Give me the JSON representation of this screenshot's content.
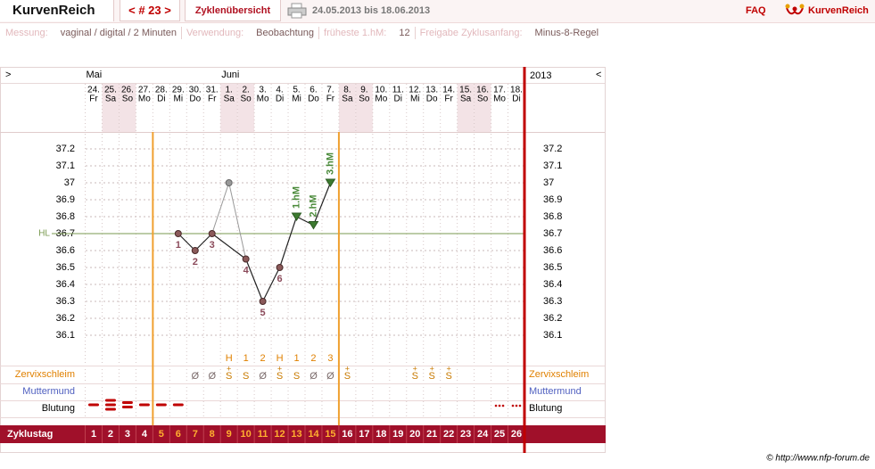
{
  "header": {
    "brand": "KurvenReich",
    "nav": "< # 23 >",
    "overview": "Zyklenübersicht",
    "range": "24.05.2013 bis 18.06.2013",
    "faq": "FAQ",
    "logo": "KurvenReich"
  },
  "info": [
    {
      "label": "Messung:",
      "value": "vaginal / digital / 2 Minuten"
    },
    {
      "label": "Verwendung:",
      "value": "Beobachtung"
    },
    {
      "label": "früheste 1.hM:",
      "value": "12"
    },
    {
      "label": "Freigabe Zyklusanfang:",
      "value": "Minus-8-Regel"
    }
  ],
  "footer": "© http://www.nfp-forum.de",
  "chart_data": {
    "type": "nfp-cycle",
    "toggle_left": ">",
    "toggle_right": "<",
    "year": "2013",
    "month_labels": [
      "Mai",
      null,
      null,
      null,
      null,
      null,
      null,
      null,
      "Juni",
      null,
      null,
      null,
      null,
      null,
      null,
      null,
      null,
      null,
      null,
      null,
      null,
      null,
      null,
      null,
      null,
      null
    ],
    "dates": [
      "24.",
      "25.",
      "26.",
      "27.",
      "28.",
      "29.",
      "30.",
      "31.",
      "1.",
      "2.",
      "3.",
      "4.",
      "5.",
      "6.",
      "7.",
      "8.",
      "9.",
      "10.",
      "11.",
      "12.",
      "13.",
      "14.",
      "15.",
      "16.",
      "17.",
      "18."
    ],
    "weekdays": [
      "Fr",
      "Sa",
      "So",
      "Mo",
      "Di",
      "Mi",
      "Do",
      "Fr",
      "Sa",
      "So",
      "Mo",
      "Di",
      "Mi",
      "Do",
      "Fr",
      "Sa",
      "So",
      "Mo",
      "Di",
      "Mi",
      "Do",
      "Fr",
      "Sa",
      "So",
      "Mo",
      "Di"
    ],
    "cycle_days": [
      1,
      2,
      3,
      4,
      5,
      6,
      7,
      8,
      9,
      10,
      11,
      12,
      13,
      14,
      15,
      16,
      17,
      18,
      19,
      20,
      21,
      22,
      23,
      24,
      25,
      26
    ],
    "fertile_window": [
      5,
      15
    ],
    "ylim": [
      36.0,
      37.3
    ],
    "yticks": [
      36.1,
      36.2,
      36.3,
      36.4,
      36.5,
      36.6,
      36.7,
      36.8,
      36.9,
      37,
      37.1,
      37.2
    ],
    "grid": true,
    "hl": {
      "label": "HL",
      "value": 36.7,
      "color": "#7a9a50"
    },
    "series": [
      {
        "color": "#8b5a5a",
        "values": [
          null,
          null,
          null,
          null,
          null,
          36.7,
          36.6,
          36.7,
          null,
          36.55,
          36.3,
          36.5,
          36.8,
          36.75,
          37.0,
          null,
          null,
          null,
          null,
          null,
          null,
          null,
          null,
          null,
          null,
          null
        ]
      },
      {
        "color": "#999999",
        "values": [
          null,
          null,
          null,
          null,
          null,
          null,
          null,
          null,
          37.0,
          null,
          null,
          null,
          null,
          null,
          null,
          null,
          null,
          null,
          null,
          null,
          null,
          null,
          null,
          null,
          null,
          null
        ]
      }
    ],
    "point_labels": [
      null,
      null,
      null,
      null,
      null,
      "1",
      "2",
      "3",
      null,
      "4",
      "5",
      "6",
      null,
      null,
      null,
      null,
      null,
      null,
      null,
      null,
      null,
      null,
      null,
      null,
      null,
      null
    ],
    "hm_labels": [
      null,
      null,
      null,
      null,
      null,
      null,
      null,
      null,
      null,
      null,
      null,
      null,
      "1.hM",
      "2.hM",
      "3.hM",
      null,
      null,
      null,
      null,
      null,
      null,
      null,
      null,
      null,
      null,
      null
    ],
    "peak_marks": [
      null,
      null,
      null,
      null,
      null,
      null,
      null,
      null,
      "H",
      "1",
      "2",
      "H",
      "1",
      "2",
      "3",
      null,
      null,
      null,
      null,
      null,
      null,
      null,
      null,
      null,
      null,
      null
    ],
    "row_labels": {
      "mucus": "Zervixschleim",
      "cervix": "Muttermund",
      "bleeding": "Blutung",
      "cycle_day": "Zyklustag"
    },
    "mucus": [
      null,
      null,
      null,
      null,
      null,
      null,
      "Ø",
      "Ø",
      "S",
      "S",
      "Ø",
      "S",
      "S",
      "Ø",
      "Ø",
      "S",
      null,
      null,
      null,
      "S",
      "S",
      "S",
      null,
      null,
      null,
      null
    ],
    "mucus_sign": [
      null,
      null,
      null,
      null,
      null,
      null,
      null,
      null,
      "+",
      null,
      null,
      "+",
      null,
      null,
      null,
      "+",
      null,
      null,
      null,
      "+",
      "+",
      "+",
      null,
      null,
      null,
      null
    ],
    "bleeding": [
      1,
      3,
      2,
      1,
      1,
      1,
      null,
      null,
      null,
      null,
      null,
      null,
      null,
      null,
      null,
      null,
      null,
      null,
      null,
      null,
      null,
      null,
      null,
      null,
      0,
      0
    ]
  }
}
